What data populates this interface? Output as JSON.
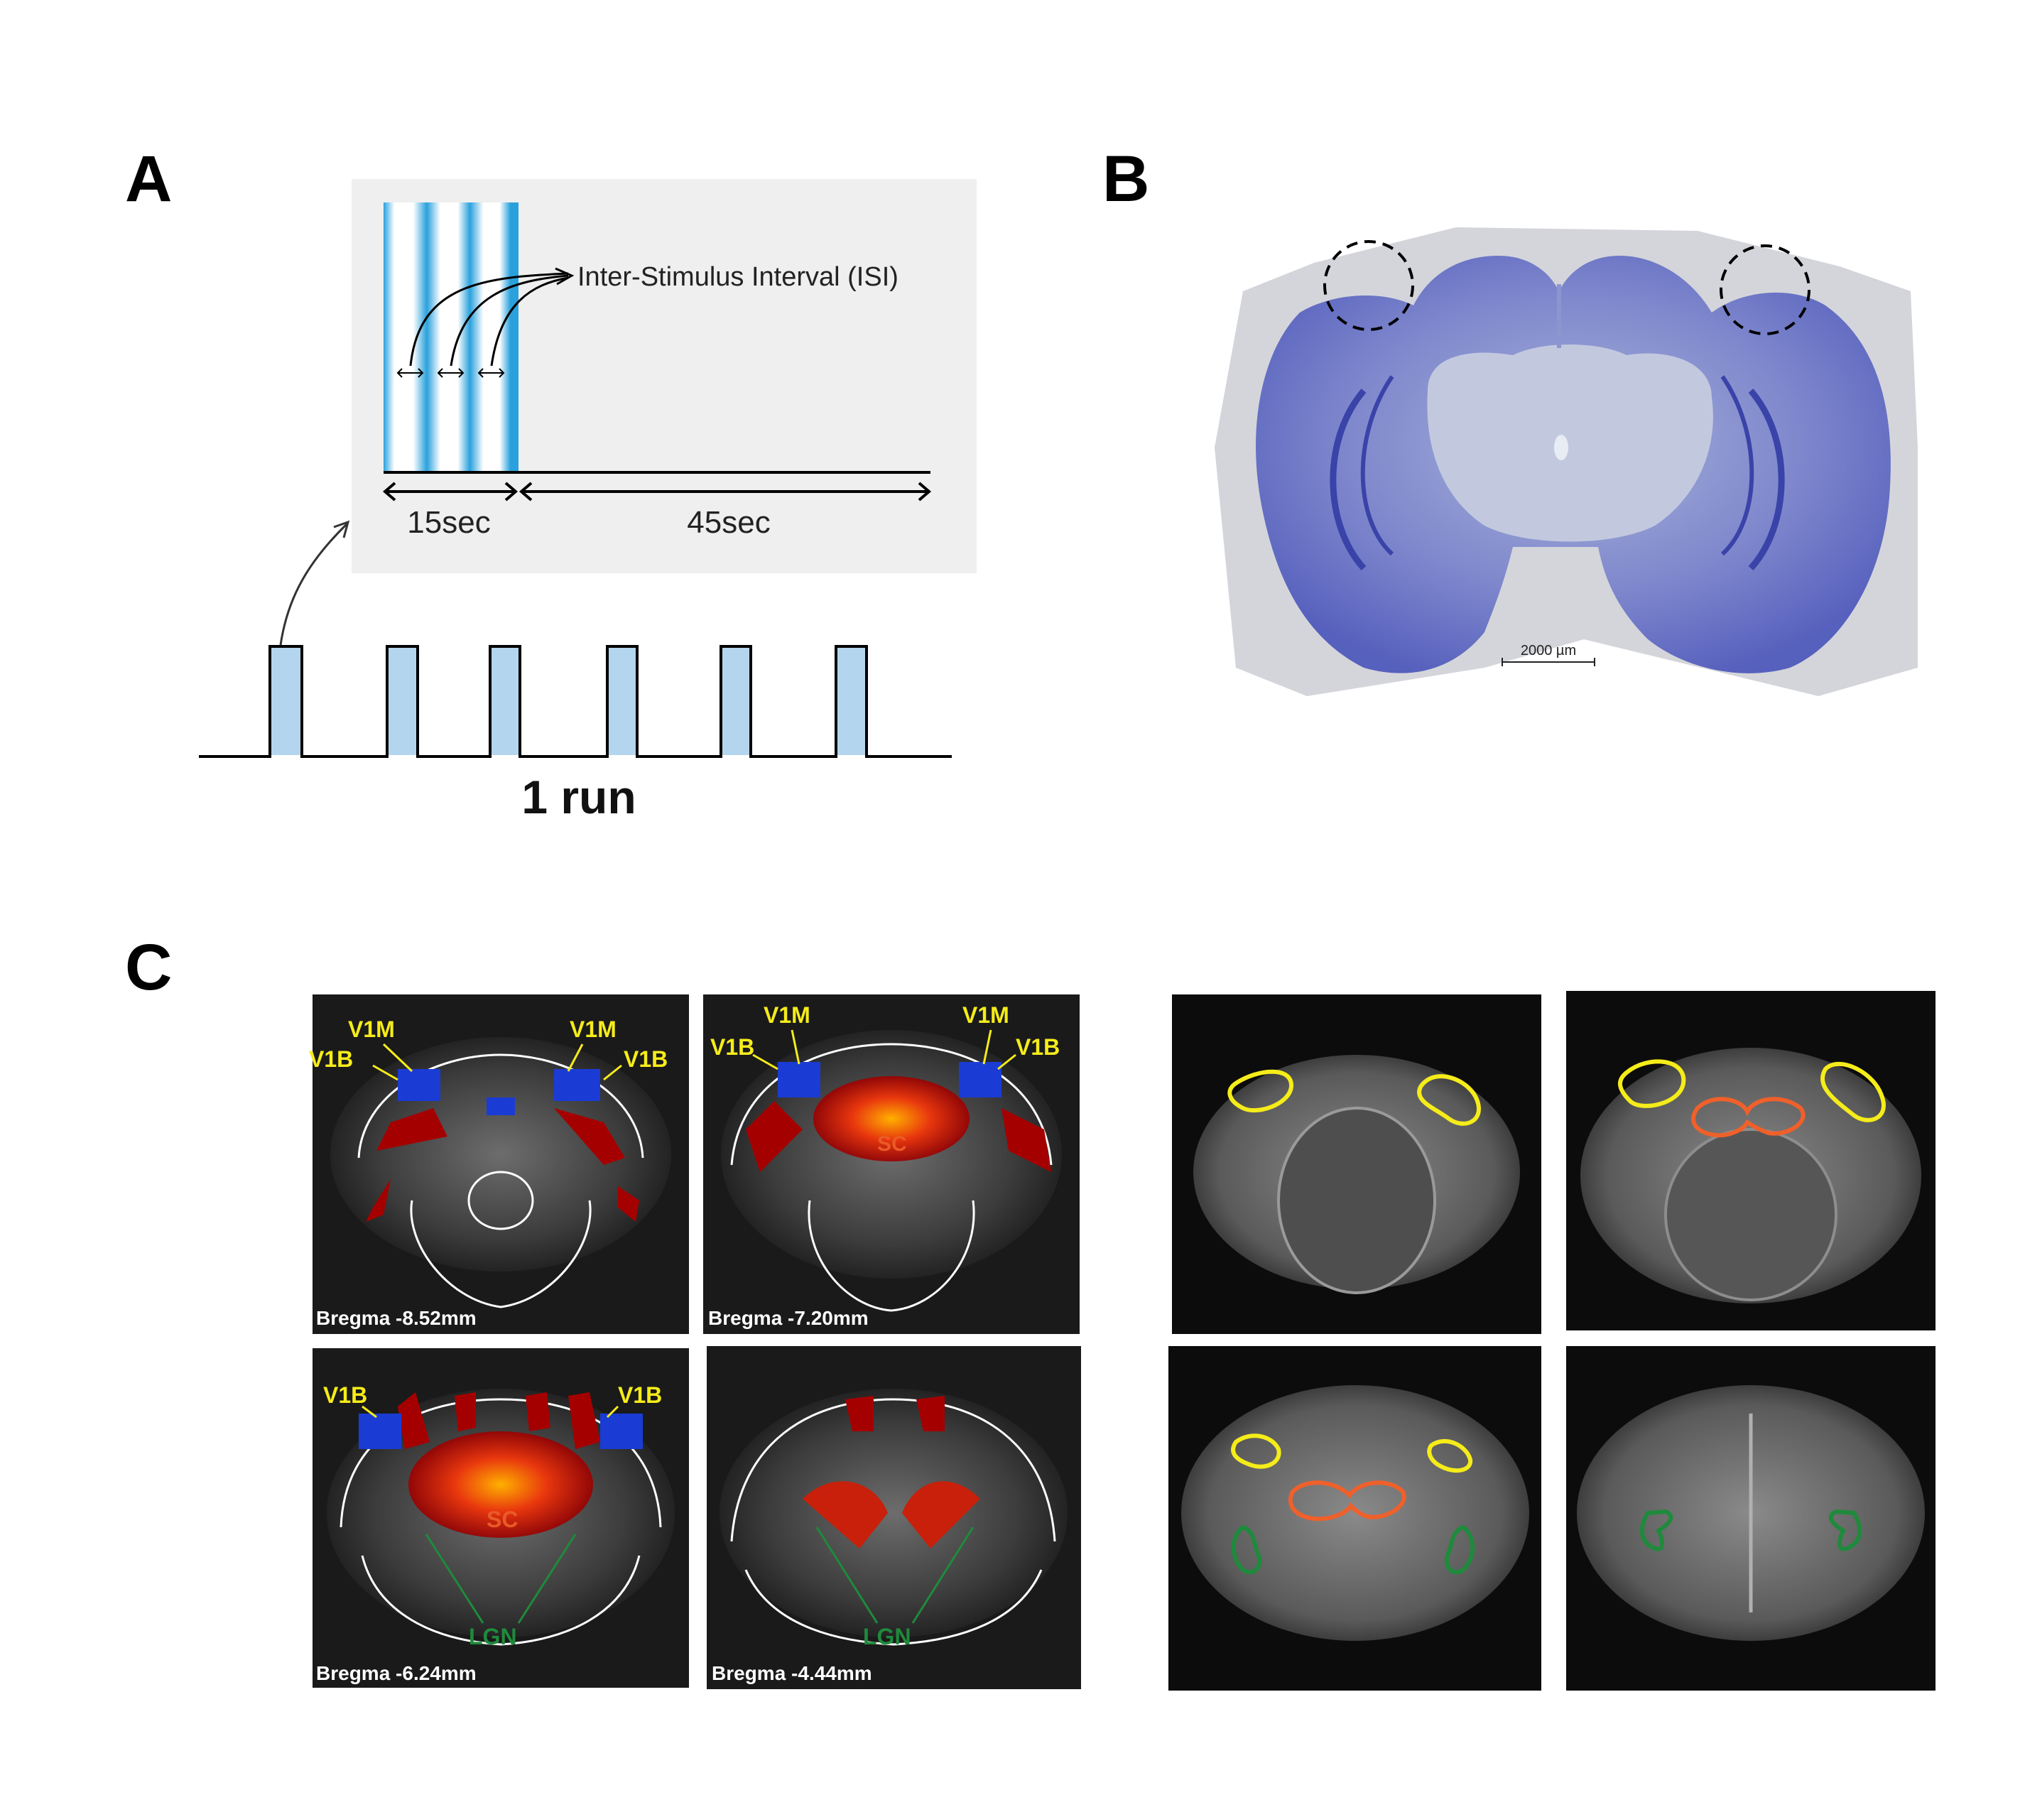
{
  "panels": {
    "a": {
      "letter": "A",
      "isi_label": "Inter-Stimulus Interval (ISI)",
      "stim_duration": "15sec",
      "isi_duration": "45sec",
      "run_label": "1 run",
      "block_count": 6
    },
    "b": {
      "letter": "B",
      "scale_bar": "2000 µm"
    },
    "c": {
      "letter": "C",
      "fmri_slices": [
        {
          "bregma": "Bregma -8.52mm",
          "labels": [
            "V1M",
            "V1B",
            "V1M",
            "V1B"
          ]
        },
        {
          "bregma": "Bregma -7.20mm",
          "labels": [
            "V1M",
            "V1B",
            "SC",
            "V1M",
            "V1B"
          ]
        },
        {
          "bregma": "Bregma -6.24mm",
          "labels": [
            "V1B",
            "V1B",
            "SC",
            "LGN"
          ]
        },
        {
          "bregma": "Bregma -4.44mm",
          "labels": [
            "LGN"
          ]
        }
      ],
      "roi_colors": {
        "v1": "#f5ec1a",
        "sc": "#f0602a",
        "lgn": "#1f8a3c",
        "v1_label": "#f5ec1a",
        "sc_label": "#ea5a27",
        "lgn_label": "#1f8a3c"
      }
    }
  }
}
